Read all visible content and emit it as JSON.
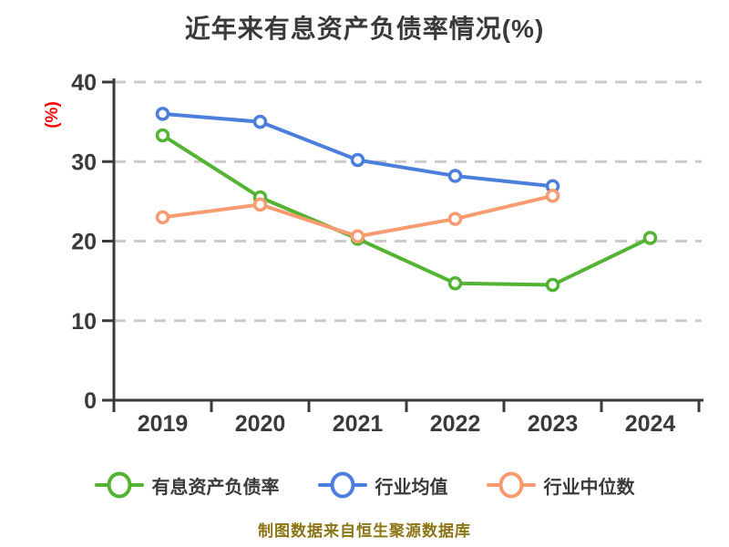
{
  "title": "近年来有息资产负债率情况(%)",
  "y_axis_label": "(%)",
  "footer_note": "制图数据来自恒生聚源数据库",
  "colors": {
    "title_text": "#3a3a3a",
    "axis_and_ticks": "#3a3a3a",
    "gridline": "#cbcbcb",
    "y_label_red": "#ff0000",
    "footer_gold": "#8c7514",
    "marker_fill": "#ffffff"
  },
  "chart_data": {
    "type": "line",
    "title": "近年来有息资产负债率情况(%)",
    "categories": [
      "2019",
      "2020",
      "2021",
      "2022",
      "2023",
      "2024"
    ],
    "series": [
      {
        "name": "有息资产负债率",
        "color": "#53b332",
        "values": [
          33.3,
          25.5,
          20.3,
          14.7,
          14.5,
          20.4
        ]
      },
      {
        "name": "行业均值",
        "color": "#4c7fdc",
        "values": [
          36.0,
          35.0,
          30.2,
          28.2,
          26.9,
          null
        ]
      },
      {
        "name": "行业中位数",
        "color": "#f99b70",
        "values": [
          23.0,
          24.6,
          20.6,
          22.8,
          25.7,
          null
        ]
      }
    ],
    "ylabel": "(%)",
    "xlabel": "",
    "ylim": [
      0,
      40
    ],
    "yticks": [
      0,
      10,
      20,
      30,
      40
    ],
    "grid": "horizontal-dashed",
    "legend_position": "bottom",
    "marker_style": "circle-white-fill"
  }
}
